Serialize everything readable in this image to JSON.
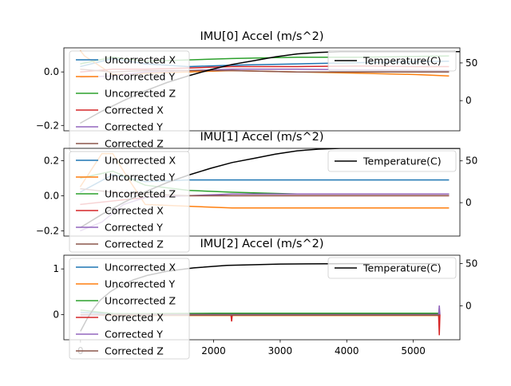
{
  "chart_data": [
    {
      "type": "line",
      "title": "IMU[0] Accel (m/s^2)",
      "xlim": [
        -75,
        1750
      ],
      "ylim": [
        -0.22,
        0.09
      ],
      "y2lim": [
        -40,
        70
      ],
      "yticks": [
        {
          "v": -0.2,
          "label": "−0.2"
        },
        {
          "v": 0.0,
          "label": "0.0"
        }
      ],
      "y2ticks": [
        {
          "v": 0,
          "label": "0"
        },
        {
          "v": 50,
          "label": "50"
        }
      ],
      "xticks": [],
      "legend": [
        "Uncorrected X",
        "Uncorrected Y",
        "Uncorrected Z",
        "Corrected X",
        "Corrected Y",
        "Corrected Z"
      ],
      "legend_right": "Temperature(C)",
      "series": [
        {
          "key": "ux",
          "color": "#1f77b4",
          "x": [
            0,
            150,
            300,
            500,
            700,
            1000,
            1300,
            1550,
            1700
          ],
          "y": [
            0.02,
            0.05,
            0.03,
            0.02,
            0.025,
            0.03,
            0.035,
            0.038,
            0.04
          ]
        },
        {
          "key": "uy",
          "color": "#ff7f0e",
          "x": [
            0,
            20,
            150,
            300,
            500,
            700,
            1000,
            1300,
            1550,
            1700
          ],
          "y": [
            0.08,
            0.06,
            -0.01,
            -0.005,
            0.0,
            0.005,
            0.0,
            -0.005,
            -0.01,
            -0.015
          ]
        },
        {
          "key": "uz",
          "color": "#2ca02c",
          "x": [
            0,
            150,
            300,
            500,
            700,
            1000,
            1300,
            1550,
            1700
          ],
          "y": [
            0.03,
            0.055,
            0.04,
            0.045,
            0.05,
            0.055,
            0.055,
            0.058,
            0.06
          ]
        },
        {
          "key": "cx",
          "color": "#d62728",
          "x": [
            0,
            150,
            300,
            500,
            700,
            1000,
            1300,
            1550,
            1700
          ],
          "y": [
            0.0,
            0.01,
            0.01,
            0.015,
            0.02,
            0.02,
            0.022,
            0.02,
            0.02
          ]
        },
        {
          "key": "cy",
          "color": "#9467bd",
          "x": [
            0,
            150,
            300,
            500,
            700,
            1000,
            1300,
            1550,
            1700
          ],
          "y": [
            -0.02,
            -0.015,
            0.0,
            0.005,
            0.01,
            0.01,
            0.008,
            0.006,
            0.005
          ]
        },
        {
          "key": "cz",
          "color": "#8c564b",
          "x": [
            0,
            150,
            300,
            500,
            700,
            1000,
            1300,
            1550,
            1700
          ],
          "y": [
            0.01,
            0.0,
            0.005,
            0.005,
            0.005,
            0.0,
            0.0,
            0.0,
            0.0
          ]
        }
      ],
      "temperature": {
        "color": "#000000",
        "x": [
          0,
          100,
          200,
          300,
          400,
          500,
          600,
          700,
          800,
          900,
          1000,
          1100,
          1200,
          1400,
          1750
        ],
        "y": [
          -30,
          -14,
          0,
          13,
          24,
          33,
          41,
          48,
          53,
          58,
          62,
          64,
          65,
          65,
          65
        ]
      }
    },
    {
      "type": "line",
      "title": "IMU[1] Accel (m/s^2)",
      "xlim": [
        -75,
        1750
      ],
      "ylim": [
        -0.23,
        0.27
      ],
      "y2lim": [
        -40,
        65
      ],
      "yticks": [
        {
          "v": -0.2,
          "label": "−0.2"
        },
        {
          "v": 0.0,
          "label": "0.0"
        },
        {
          "v": 0.2,
          "label": "0.2"
        }
      ],
      "y2ticks": [
        {
          "v": 0,
          "label": "0"
        },
        {
          "v": 50,
          "label": "50"
        }
      ],
      "xticks": [],
      "legend": [
        "Uncorrected X",
        "Uncorrected Y",
        "Uncorrected Z",
        "Corrected X",
        "Corrected Y",
        "Corrected Z"
      ],
      "legend_right": "Temperature(C)",
      "series": [
        {
          "key": "ux",
          "color": "#1f77b4",
          "x": [
            0,
            150,
            300,
            500,
            700,
            1000,
            1300,
            1550,
            1700
          ],
          "y": [
            0.02,
            0.12,
            0.08,
            0.09,
            0.09,
            0.09,
            0.09,
            0.09,
            0.09
          ]
        },
        {
          "key": "uy",
          "color": "#ff7f0e",
          "x": [
            0,
            100,
            150,
            220,
            300,
            500,
            700,
            1000,
            1300,
            1550,
            1700
          ],
          "y": [
            0.05,
            0.24,
            0.24,
            0.1,
            -0.05,
            -0.06,
            -0.07,
            -0.07,
            -0.07,
            -0.07,
            -0.07
          ]
        },
        {
          "key": "uz",
          "color": "#2ca02c",
          "x": [
            0,
            150,
            300,
            500,
            700,
            1000,
            1300,
            1550,
            1700
          ],
          "y": [
            0.1,
            0.14,
            0.06,
            0.03,
            0.02,
            0.01,
            0.01,
            0.01,
            0.01
          ]
        },
        {
          "key": "cx",
          "color": "#d62728",
          "x": [
            0,
            150,
            300,
            500,
            700,
            1000,
            1300,
            1550,
            1700
          ],
          "y": [
            -0.05,
            -0.03,
            -0.01,
            0.0,
            0.0,
            0.0,
            0.0,
            0.0,
            0.0
          ]
        },
        {
          "key": "cy",
          "color": "#9467bd",
          "x": [
            0,
            100,
            200,
            300,
            500,
            700,
            1000,
            1300,
            1550,
            1700
          ],
          "y": [
            -0.2,
            -0.15,
            -0.05,
            -0.01,
            0.0,
            0.01,
            0.01,
            0.01,
            0.01,
            0.01
          ]
        },
        {
          "key": "cz",
          "color": "#8c564b",
          "x": [
            0,
            150,
            300,
            500,
            700,
            1000,
            1300,
            1550,
            1700
          ],
          "y": [
            0.04,
            0.02,
            0.01,
            0.0,
            0.0,
            0.0,
            0.0,
            0.0,
            0.0
          ]
        }
      ],
      "temperature": {
        "color": "#000000",
        "x": [
          0,
          100,
          200,
          300,
          400,
          500,
          600,
          700,
          800,
          900,
          1000,
          1100,
          1200,
          1400,
          1750
        ],
        "y": [
          -30,
          -14,
          0,
          13,
          24,
          33,
          41,
          48,
          53,
          58,
          62,
          64,
          65,
          65,
          65
        ]
      }
    },
    {
      "type": "line",
      "title": "IMU[2] Accel (m/s^2)",
      "xlim": [
        -250,
        5700
      ],
      "ylim": [
        -0.55,
        1.3
      ],
      "y2lim": [
        -40,
        60
      ],
      "yticks": [
        {
          "v": 0,
          "label": "0"
        },
        {
          "v": 1,
          "label": "1"
        }
      ],
      "y2ticks": [
        {
          "v": 0,
          "label": "0"
        },
        {
          "v": 50,
          "label": "50"
        }
      ],
      "xticks": [
        {
          "v": 0,
          "label": "0"
        },
        {
          "v": 2000,
          "label": "2000"
        },
        {
          "v": 3000,
          "label": "3000"
        },
        {
          "v": 4000,
          "label": "4000"
        },
        {
          "v": 5000,
          "label": "5000"
        }
      ],
      "legend": [
        "Uncorrected X",
        "Uncorrected Y",
        "Uncorrected Z",
        "Corrected X",
        "Corrected Y",
        "Corrected Z"
      ],
      "legend_right": "Temperature(C)",
      "series": [
        {
          "key": "ux",
          "color": "#1f77b4",
          "x": [
            0,
            500,
            1000,
            2000,
            3000,
            4000,
            5000,
            5380,
            5400
          ],
          "y": [
            0.05,
            0.02,
            0.01,
            0.01,
            0.01,
            0.01,
            0.01,
            0.01,
            0.02
          ]
        },
        {
          "key": "uy",
          "color": "#ff7f0e",
          "x": [
            0,
            500,
            1000,
            2000,
            3000,
            4000,
            5000,
            5380,
            5400
          ],
          "y": [
            -0.01,
            -0.02,
            -0.02,
            -0.02,
            -0.02,
            -0.02,
            -0.02,
            -0.02,
            -0.02
          ]
        },
        {
          "key": "uz",
          "color": "#2ca02c",
          "x": [
            0,
            500,
            1000,
            2000,
            3000,
            4000,
            5000,
            5380,
            5400
          ],
          "y": [
            0.1,
            0.02,
            0.02,
            0.03,
            0.03,
            0.03,
            0.03,
            0.03,
            0.03
          ]
        },
        {
          "key": "cx",
          "color": "#d62728",
          "x": [
            0,
            500,
            1000,
            2000,
            2260,
            2270,
            2280,
            3000,
            4000,
            5000,
            5380,
            5390,
            5400
          ],
          "y": [
            0.0,
            0.0,
            0.0,
            0.0,
            0.0,
            -0.15,
            0.0,
            0.0,
            0.0,
            0.0,
            0.0,
            -0.45,
            0.0
          ]
        },
        {
          "key": "cy",
          "color": "#9467bd",
          "x": [
            0,
            500,
            1000,
            2000,
            3000,
            4000,
            5000,
            5380,
            5390,
            5400
          ],
          "y": [
            -0.02,
            0.0,
            0.0,
            0.0,
            0.0,
            0.0,
            0.0,
            0.0,
            0.2,
            0.0
          ]
        },
        {
          "key": "cz",
          "color": "#8c564b",
          "x": [
            0,
            500,
            1000,
            2000,
            3000,
            4000,
            5000,
            5380,
            5400
          ],
          "y": [
            0.0,
            0.0,
            -0.01,
            -0.01,
            -0.01,
            -0.01,
            -0.01,
            -0.01,
            0.0
          ]
        }
      ],
      "temperature": {
        "color": "#000000",
        "x": [
          0,
          100,
          200,
          300,
          450,
          600,
          800,
          1000,
          1300,
          1700,
          2200,
          3000,
          4000,
          5000,
          5400
        ],
        "y": [
          -30,
          -15,
          -3,
          7,
          17,
          24,
          31,
          36,
          41,
          45,
          48,
          49.5,
          50,
          50,
          50
        ]
      }
    }
  ]
}
